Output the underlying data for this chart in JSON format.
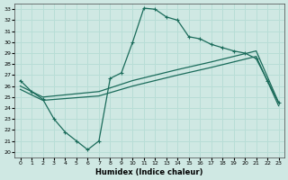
{
  "xlabel": "Humidex (Indice chaleur)",
  "bg_color": "#cfe8e3",
  "line_color": "#1a6b5a",
  "grid_color": "#b8ddd6",
  "xlim": [
    -0.5,
    23.5
  ],
  "ylim": [
    19.5,
    33.5
  ],
  "xticks": [
    0,
    1,
    2,
    3,
    4,
    5,
    6,
    7,
    8,
    9,
    10,
    11,
    12,
    13,
    14,
    15,
    16,
    17,
    18,
    19,
    20,
    21,
    22,
    23
  ],
  "yticks": [
    20,
    21,
    22,
    23,
    24,
    25,
    26,
    27,
    28,
    29,
    30,
    31,
    32,
    33
  ],
  "curve1_x": [
    0,
    1,
    2,
    3,
    4,
    5,
    6,
    7,
    8,
    9,
    10,
    11,
    12,
    13,
    14,
    15,
    16,
    17,
    18,
    19,
    20,
    21,
    22,
    23
  ],
  "curve1_y": [
    26.5,
    25.5,
    24.8,
    23.0,
    21.8,
    21.0,
    20.2,
    21.0,
    26.7,
    27.2,
    30.0,
    33.1,
    33.0,
    32.3,
    32.0,
    30.5,
    30.3,
    29.8,
    29.5,
    29.2,
    29.0,
    28.5,
    26.5,
    24.5
  ],
  "curve2_x": [
    0,
    2,
    7,
    10,
    14,
    17,
    21,
    23
  ],
  "curve2_y": [
    26.0,
    25.0,
    25.5,
    26.5,
    27.5,
    28.2,
    29.2,
    24.5
  ],
  "curve3_x": [
    0,
    2,
    7,
    10,
    14,
    17,
    21,
    23
  ],
  "curve3_y": [
    25.7,
    24.7,
    25.1,
    26.0,
    27.0,
    27.7,
    28.7,
    24.2
  ]
}
